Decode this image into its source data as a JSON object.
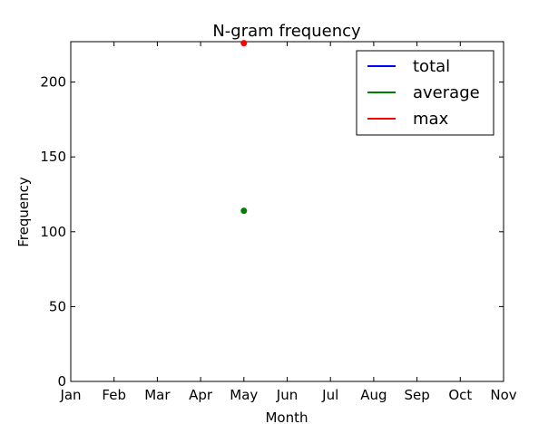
{
  "chart_data": {
    "type": "scatter",
    "title": "N-gram frequency",
    "xlabel": "Month",
    "ylabel": "Frequency",
    "categories": [
      "Jan",
      "Feb",
      "Mar",
      "Apr",
      "May",
      "Jun",
      "Jul",
      "Aug",
      "Sep",
      "Oct",
      "Nov"
    ],
    "yticks": [
      0,
      50,
      100,
      150,
      200
    ],
    "ylim": [
      0,
      227
    ],
    "grid": false,
    "legend_position": "top-right",
    "series": [
      {
        "name": "total",
        "color": "#0000ff",
        "points": []
      },
      {
        "name": "average",
        "color": "#008000",
        "points": [
          {
            "x": "May",
            "y": 114
          }
        ]
      },
      {
        "name": "max",
        "color": "#ff0000",
        "points": [
          {
            "x": "May",
            "y": 226
          }
        ]
      }
    ]
  }
}
